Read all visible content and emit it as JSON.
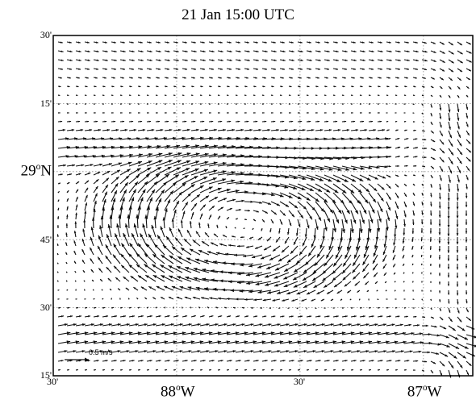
{
  "title": "21 Jan 15:00 UTC",
  "lat_labels": [
    {
      "text": "30'",
      "sup": "",
      "tail": "",
      "lat": 29.5
    },
    {
      "text": "15'",
      "sup": "",
      "tail": "",
      "lat": 29.25
    },
    {
      "text": "29",
      "sup": "o",
      "tail": "N",
      "lat": 29.0
    },
    {
      "text": "45'",
      "sup": "",
      "tail": "",
      "lat": 28.75
    },
    {
      "text": "30'",
      "sup": "",
      "tail": "",
      "lat": 28.5
    },
    {
      "text": "15'",
      "sup": "",
      "tail": "",
      "lat": 28.25
    }
  ],
  "lon_labels": [
    {
      "text": "30'",
      "sup": "",
      "tail": "",
      "lon": -88.5
    },
    {
      "text": "88",
      "sup": "o",
      "tail": "W",
      "lon": -88.0
    },
    {
      "text": "30'",
      "sup": "",
      "tail": "",
      "lon": -87.5
    },
    {
      "text": "87",
      "sup": "o",
      "tail": "W",
      "lon": -87.0
    }
  ],
  "scale_label": "0.5 m/s",
  "map_extent": {
    "lon_min": -88.5,
    "lon_max": -86.8,
    "lat_min": 28.25,
    "lat_max": 29.5
  },
  "grid_lines": {
    "lat": [
      29.25,
      29.0,
      28.75,
      28.5
    ],
    "lon": [
      -88.0,
      -87.5,
      -87.0
    ]
  },
  "colors": {
    "arrow": "#111111",
    "frame": "#000000",
    "grid": "#8a8a8a"
  }
}
